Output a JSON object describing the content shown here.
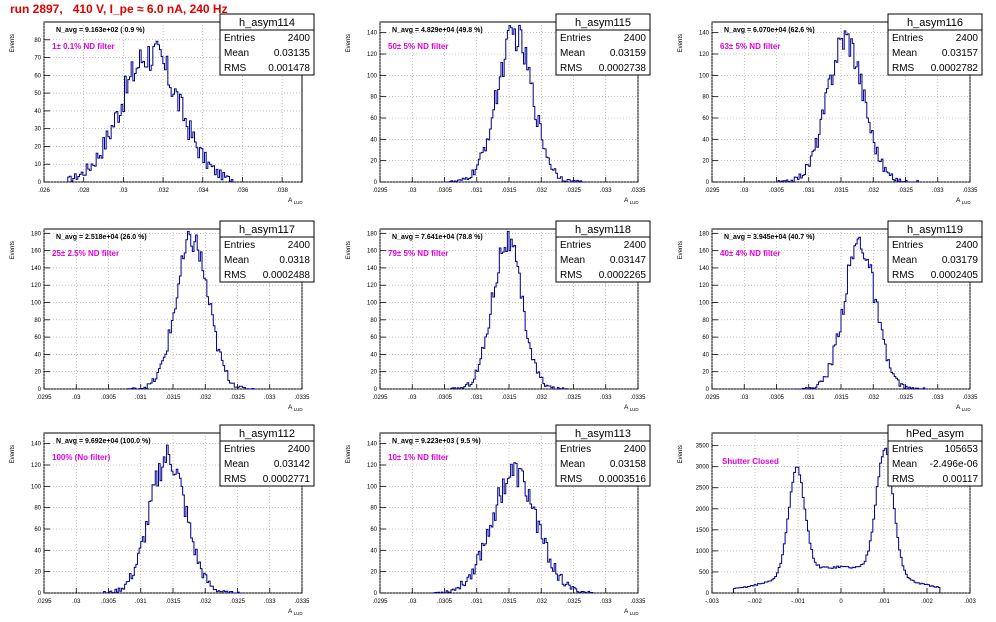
{
  "page": {
    "title": "run 2897,   410 V, I_pe ≈ 6.0 nA, 240 Hz"
  },
  "chart_data": [
    {
      "type": "bar",
      "name": "h_asym114",
      "annotation": "N_avg = 9.163e+02 ( 0.9 %)",
      "filter_label": "1± 0.1% ND filter",
      "stats": {
        "Entries": "2400",
        "Mean": "0.03135",
        "RMS": "0.001478"
      },
      "ylabel": "Events",
      "xlabel": "A_{LUD}",
      "xlim": [
        0.026,
        0.039
      ],
      "ylim": [
        0,
        90
      ],
      "xticks": [
        0.026,
        0.028,
        0.03,
        0.032,
        0.034,
        0.036,
        0.038
      ],
      "yticks": [
        0,
        10,
        20,
        30,
        40,
        50,
        60,
        70,
        80
      ],
      "dist": {
        "kind": "gauss",
        "mean": 0.03135,
        "sigma": 0.00148,
        "peak": 72,
        "lo": 0.0272,
        "hi": 0.0356,
        "bins": 100
      }
    },
    {
      "type": "bar",
      "name": "h_asym115",
      "annotation": "N_avg = 4.829e+04 (49.8 %)",
      "filter_label": "50± 5% ND filter",
      "stats": {
        "Entries": "2400",
        "Mean": "0.03159",
        "RMS": "0.0002738"
      },
      "ylabel": "Events",
      "xlabel": "A_{LUD}",
      "xlim": [
        0.0295,
        0.0335
      ],
      "ylim": [
        0,
        150
      ],
      "xticks": [
        0.0295,
        0.03,
        0.0305,
        0.031,
        0.0315,
        0.032,
        0.0325,
        0.033,
        0.0335
      ],
      "yticks": [
        0,
        20,
        40,
        60,
        80,
        100,
        120,
        140
      ],
      "dist": {
        "kind": "gauss",
        "mean": 0.03159,
        "sigma": 0.000274,
        "peak": 138,
        "lo": 0.0305,
        "hi": 0.0327,
        "bins": 88
      }
    },
    {
      "type": "bar",
      "name": "h_asym116",
      "annotation": "N_avg = 6.070e+04 (62.6 %)",
      "filter_label": "63± 5% ND filter",
      "stats": {
        "Entries": "2400",
        "Mean": "0.03157",
        "RMS": "0.0002782"
      },
      "ylabel": "Events",
      "xlabel": "A_{LUD}",
      "xlim": [
        0.0295,
        0.0335
      ],
      "ylim": [
        0,
        150
      ],
      "xticks": [
        0.0295,
        0.03,
        0.0305,
        0.031,
        0.0315,
        0.032,
        0.0325,
        0.033,
        0.0335
      ],
      "yticks": [
        0,
        20,
        40,
        60,
        80,
        100,
        120,
        140
      ],
      "dist": {
        "kind": "gauss",
        "mean": 0.03157,
        "sigma": 0.000278,
        "peak": 136,
        "lo": 0.0305,
        "hi": 0.0327,
        "bins": 88
      }
    },
    {
      "type": "bar",
      "name": "h_asym117",
      "annotation": "N_avg = 2.518e+04 (26.0 %)",
      "filter_label": "25± 2.5% ND filter",
      "stats": {
        "Entries": "2400",
        "Mean": "0.0318",
        "RMS": "0.0002488"
      },
      "ylabel": "Events",
      "xlabel": "A_{LUD}",
      "xlim": [
        0.0295,
        0.0335
      ],
      "ylim": [
        0,
        185
      ],
      "xticks": [
        0.0295,
        0.03,
        0.0305,
        0.031,
        0.0315,
        0.032,
        0.0325,
        0.033,
        0.0335
      ],
      "yticks": [
        0,
        20,
        40,
        60,
        80,
        100,
        120,
        140,
        160,
        180
      ],
      "dist": {
        "kind": "gauss",
        "mean": 0.0318,
        "sigma": 0.000249,
        "peak": 172,
        "lo": 0.0308,
        "hi": 0.0328,
        "bins": 80
      }
    },
    {
      "type": "bar",
      "name": "h_asym118",
      "annotation": "N_avg = 7.641e+04 (78.8 %)",
      "filter_label": "79± 5% ND filter",
      "stats": {
        "Entries": "2400",
        "Mean": "0.03147",
        "RMS": "0.0002265"
      },
      "ylabel": "Events",
      "xlabel": "A_{LUD}",
      "xlim": [
        0.0295,
        0.0335
      ],
      "ylim": [
        0,
        185
      ],
      "xticks": [
        0.0295,
        0.03,
        0.0305,
        0.031,
        0.0315,
        0.032,
        0.0325,
        0.033,
        0.0335
      ],
      "yticks": [
        0,
        20,
        40,
        60,
        80,
        100,
        120,
        140,
        160,
        180
      ],
      "dist": {
        "kind": "gauss",
        "mean": 0.03147,
        "sigma": 0.000227,
        "peak": 172,
        "lo": 0.0306,
        "hi": 0.0324,
        "bins": 72
      }
    },
    {
      "type": "bar",
      "name": "h_asym119",
      "annotation": "N_avg = 3.945e+04 (40.7 %)",
      "filter_label": "40± 4% ND filter",
      "stats": {
        "Entries": "2400",
        "Mean": "0.03179",
        "RMS": "0.0002405"
      },
      "ylabel": "Events",
      "xlabel": "A_{LUD}",
      "xlim": [
        0.0295,
        0.0335
      ],
      "ylim": [
        0,
        185
      ],
      "xticks": [
        0.0295,
        0.03,
        0.0305,
        0.031,
        0.0315,
        0.032,
        0.0325,
        0.033,
        0.0335
      ],
      "yticks": [
        0,
        20,
        40,
        60,
        80,
        100,
        120,
        140,
        160,
        180
      ],
      "dist": {
        "kind": "gauss",
        "mean": 0.03179,
        "sigma": 0.000241,
        "peak": 170,
        "lo": 0.0308,
        "hi": 0.0328,
        "bins": 80
      }
    },
    {
      "type": "bar",
      "name": "h_asym112",
      "annotation": "N_avg = 9.692e+04 (100.0 %)",
      "filter_label": "100% (No filter)",
      "stats": {
        "Entries": "2400",
        "Mean": "0.03142",
        "RMS": "0.0002771"
      },
      "ylabel": "Events",
      "xlabel": "A_{LUD}",
      "xlim": [
        0.0295,
        0.0335
      ],
      "ylim": [
        0,
        150
      ],
      "xticks": [
        0.0295,
        0.03,
        0.0305,
        0.031,
        0.0315,
        0.032,
        0.0325,
        0.033,
        0.0335
      ],
      "yticks": [
        0,
        20,
        40,
        60,
        80,
        100,
        120,
        140
      ],
      "dist": {
        "kind": "gauss",
        "mean": 0.03142,
        "sigma": 0.000277,
        "peak": 128,
        "lo": 0.0304,
        "hi": 0.0326,
        "bins": 88
      }
    },
    {
      "type": "bar",
      "name": "h_asym113",
      "annotation": "N_avg = 9.223e+03 ( 9.5 %)",
      "filter_label": "10± 1% ND filter",
      "stats": {
        "Entries": "2400",
        "Mean": "0.03158",
        "RMS": "0.0003516"
      },
      "ylabel": "Events",
      "xlabel": "A_{LUD}",
      "xlim": [
        0.0295,
        0.0335
      ],
      "ylim": [
        0,
        150
      ],
      "xticks": [
        0.0295,
        0.03,
        0.0305,
        0.031,
        0.0315,
        0.032,
        0.0325,
        0.033,
        0.0335
      ],
      "yticks": [
        0,
        20,
        40,
        60,
        80,
        100,
        120,
        140
      ],
      "dist": {
        "kind": "gauss",
        "mean": 0.03158,
        "sigma": 0.000352,
        "peak": 112,
        "lo": 0.0303,
        "hi": 0.0328,
        "bins": 100
      }
    },
    {
      "type": "bar",
      "name": "hPed_asym",
      "annotation": "",
      "filter_label": "Shutter Closed",
      "stats": {
        "Entries": "105653",
        "Mean": "-2.496e-06",
        "RMS": "0.00117"
      },
      "ylabel": "Events",
      "xlabel": "",
      "xlim": [
        -0.003,
        0.003
      ],
      "ylim": [
        0,
        3800
      ],
      "xticks": [
        -0.003,
        -0.002,
        -0.001,
        0,
        0.001,
        0.002,
        0.003
      ],
      "yticks": [
        0,
        500,
        1000,
        1500,
        2000,
        2500,
        3000,
        3500
      ],
      "dist": {
        "kind": "double",
        "peaks": [
          {
            "mean": -0.00103,
            "sigma": 0.00019,
            "peak": 2500
          },
          {
            "mean": 0.00102,
            "sigma": 0.0002,
            "peak": 2950
          }
        ],
        "base": {
          "mean": 0.0,
          "sigma": 0.0013,
          "peak": 620
        },
        "lo": -0.0025,
        "hi": 0.0023,
        "bins": 120
      }
    }
  ]
}
